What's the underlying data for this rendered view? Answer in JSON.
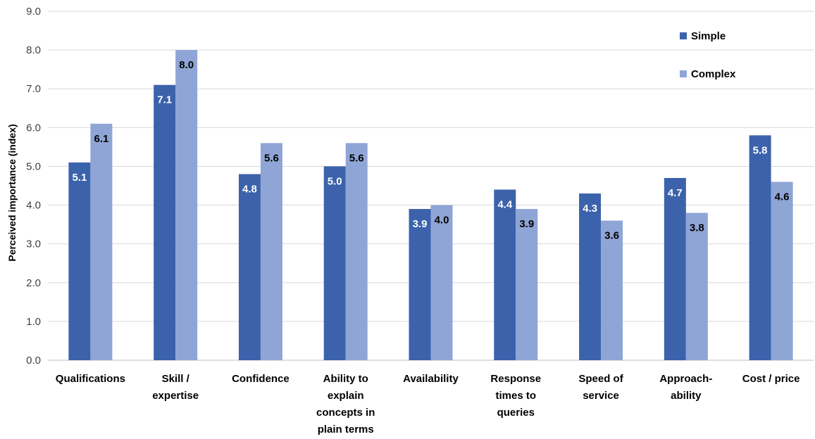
{
  "chart_data": {
    "type": "bar",
    "title": "",
    "xlabel": "",
    "ylabel": "Perceived importance (index)",
    "ylim": [
      0,
      9
    ],
    "yticks": [
      "0.0",
      "1.0",
      "2.0",
      "3.0",
      "4.0",
      "5.0",
      "6.0",
      "7.0",
      "8.0",
      "9.0"
    ],
    "grid": true,
    "legend_position": "top-right",
    "categories": [
      [
        "Qualifications"
      ],
      [
        "Skill /",
        "expertise"
      ],
      [
        "Confidence"
      ],
      [
        "Ability to",
        "explain",
        "concepts in",
        "plain terms"
      ],
      [
        "Availability"
      ],
      [
        "Response",
        "times to",
        "queries"
      ],
      [
        "Speed of",
        "service"
      ],
      [
        "Approach-",
        "ability"
      ],
      [
        "Cost / price"
      ]
    ],
    "series": [
      {
        "name": "Simple",
        "color": "#3c62ab",
        "label_color": "#ffffff",
        "values": [
          5.1,
          7.1,
          4.8,
          5.0,
          3.9,
          4.4,
          4.3,
          4.7,
          5.8
        ],
        "labels": [
          "5.1",
          "7.1",
          "4.8",
          "5.0",
          "3.9",
          "4.4",
          "4.3",
          "4.7",
          "5.8"
        ]
      },
      {
        "name": "Complex",
        "color": "#8fa5d6",
        "label_color": "#000000",
        "values": [
          6.1,
          8.0,
          5.6,
          5.6,
          4.0,
          3.9,
          3.6,
          3.8,
          4.6
        ],
        "labels": [
          "6.1",
          "8.0",
          "5.6",
          "5.6",
          "4.0",
          "3.9",
          "3.6",
          "3.8",
          "4.6"
        ]
      }
    ]
  }
}
